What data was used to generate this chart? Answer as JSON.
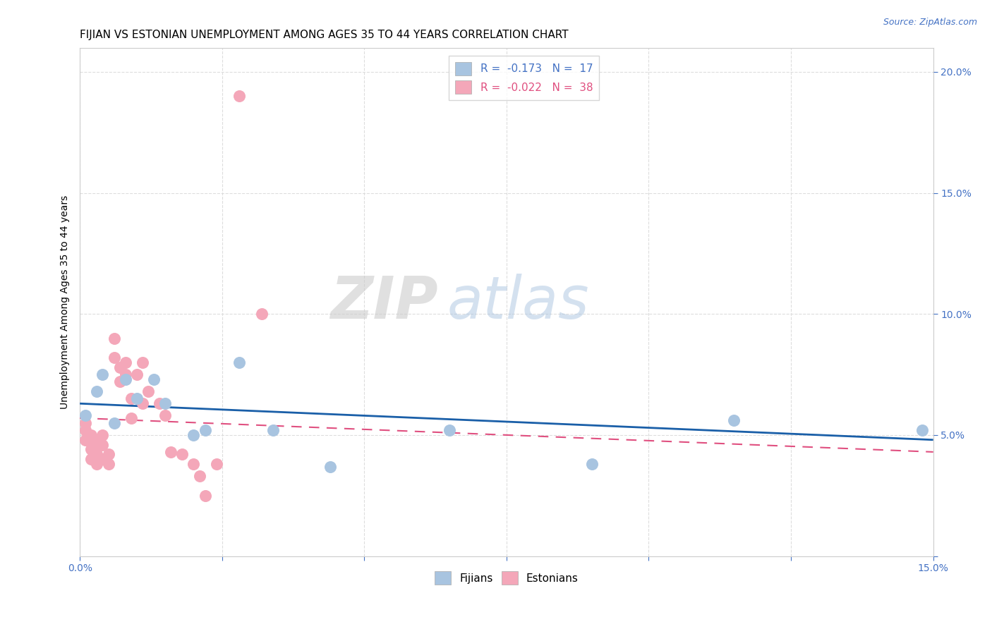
{
  "title": "FIJIAN VS ESTONIAN UNEMPLOYMENT AMONG AGES 35 TO 44 YEARS CORRELATION CHART",
  "source": "Source: ZipAtlas.com",
  "ylabel": "Unemployment Among Ages 35 to 44 years",
  "xlabel": "",
  "watermark": "ZIPatlas",
  "xlim": [
    0.0,
    0.15
  ],
  "ylim": [
    0.0,
    0.21
  ],
  "xticks": [
    0.0,
    0.025,
    0.05,
    0.075,
    0.1,
    0.125,
    0.15
  ],
  "xtick_labels": [
    "0.0%",
    "",
    "",
    "",
    "",
    "",
    "15.0%"
  ],
  "yticks_right": [
    0.0,
    0.05,
    0.1,
    0.15,
    0.2
  ],
  "ytick_right_labels": [
    "",
    "5.0%",
    "10.0%",
    "15.0%",
    "20.0%"
  ],
  "fijian_color": "#a8c4e0",
  "estonian_color": "#f4a7b9",
  "fijian_line_color": "#1a5fa8",
  "estonian_line_color": "#e05080",
  "legend_fijian_r": "-0.173",
  "legend_fijian_n": "17",
  "legend_estonian_r": "-0.022",
  "legend_estonian_n": "38",
  "fijian_x": [
    0.001,
    0.003,
    0.004,
    0.006,
    0.008,
    0.01,
    0.013,
    0.015,
    0.02,
    0.022,
    0.028,
    0.034,
    0.044,
    0.065,
    0.09,
    0.115,
    0.148
  ],
  "fijian_y": [
    0.058,
    0.068,
    0.075,
    0.055,
    0.073,
    0.065,
    0.073,
    0.063,
    0.05,
    0.052,
    0.08,
    0.052,
    0.037,
    0.052,
    0.038,
    0.056,
    0.052
  ],
  "estonian_x": [
    0.001,
    0.001,
    0.001,
    0.002,
    0.002,
    0.002,
    0.002,
    0.003,
    0.003,
    0.003,
    0.003,
    0.004,
    0.004,
    0.004,
    0.005,
    0.005,
    0.006,
    0.006,
    0.007,
    0.007,
    0.008,
    0.008,
    0.009,
    0.009,
    0.01,
    0.011,
    0.011,
    0.012,
    0.014,
    0.015,
    0.016,
    0.018,
    0.02,
    0.021,
    0.022,
    0.024,
    0.028,
    0.032
  ],
  "estonian_y": [
    0.055,
    0.052,
    0.048,
    0.05,
    0.047,
    0.044,
    0.04,
    0.048,
    0.045,
    0.042,
    0.038,
    0.05,
    0.046,
    0.04,
    0.042,
    0.038,
    0.09,
    0.082,
    0.078,
    0.072,
    0.08,
    0.075,
    0.057,
    0.065,
    0.075,
    0.08,
    0.063,
    0.068,
    0.063,
    0.058,
    0.043,
    0.042,
    0.038,
    0.033,
    0.025,
    0.038,
    0.19,
    0.1
  ],
  "fijian_line_x0": 0.0,
  "fijian_line_y0": 0.063,
  "fijian_line_x1": 0.15,
  "fijian_line_y1": 0.048,
  "estonian_line_x0": 0.0,
  "estonian_line_y0": 0.057,
  "estonian_line_x1": 0.15,
  "estonian_line_y1": 0.043,
  "background_color": "#ffffff",
  "grid_color": "#dddddd",
  "title_fontsize": 11,
  "axis_label_fontsize": 10,
  "tick_fontsize": 10,
  "legend_fontsize": 11
}
